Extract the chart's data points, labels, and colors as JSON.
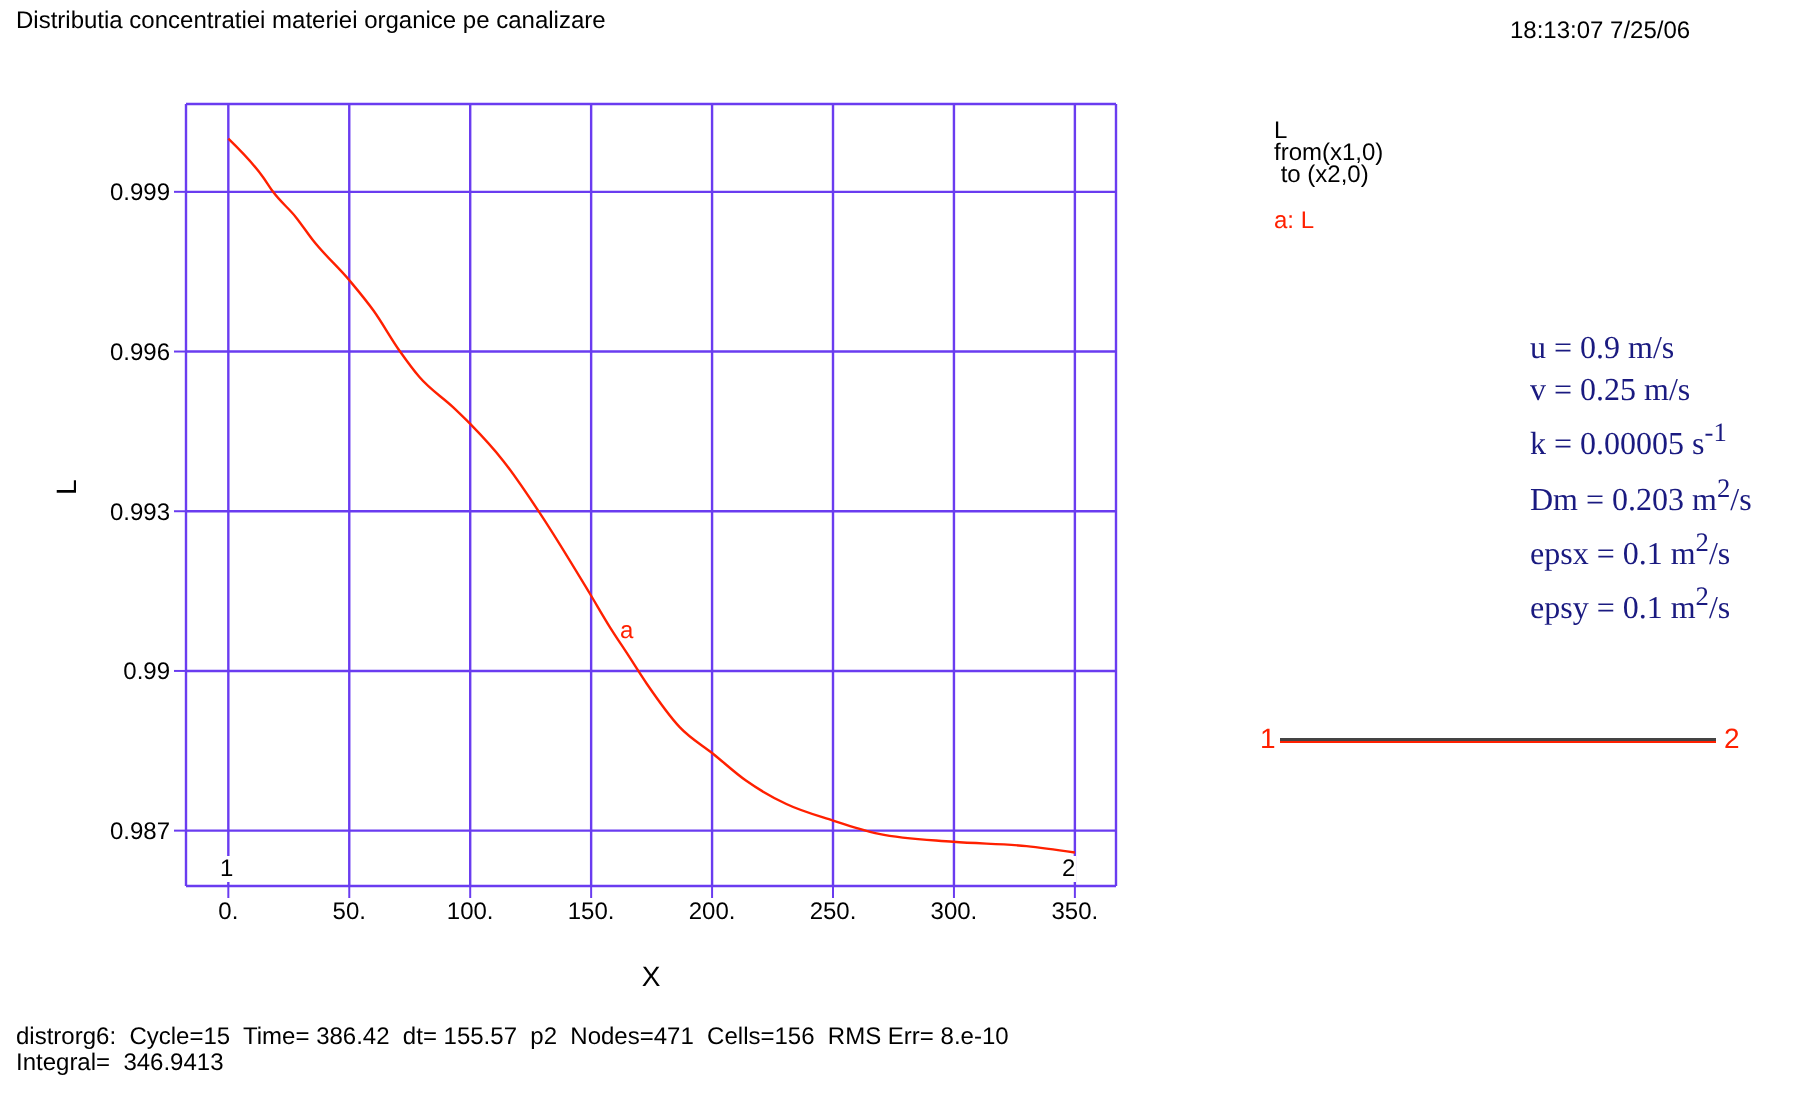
{
  "chart_data": {
    "type": "line",
    "title": "Distributia concentratiei materiei organice pe canalizare",
    "xlabel": "X",
    "ylabel": "L",
    "legend_title": "L\nfrom(x1,0)\n to (x2,0)",
    "legend": "top right",
    "grid": true,
    "marker": "none",
    "line_style": "solid",
    "xlim": [
      -17.5,
      367
    ],
    "ylim": [
      0.98596,
      1.00065
    ],
    "xticks": [
      {
        "value": 0,
        "label": "0."
      },
      {
        "value": 50,
        "label": "50."
      },
      {
        "value": 100,
        "label": "100."
      },
      {
        "value": 150,
        "label": "150."
      },
      {
        "value": 200,
        "label": "200."
      },
      {
        "value": 250,
        "label": "250."
      },
      {
        "value": 300,
        "label": "300."
      },
      {
        "value": 350,
        "label": "350."
      }
    ],
    "yticks": [
      0.987,
      0.99,
      0.993,
      0.996,
      0.999
    ],
    "x": [
      0,
      14.3,
      18.5,
      28,
      35,
      50.2,
      60,
      71,
      79,
      93,
      100,
      113.6,
      129,
      149.5,
      157.8,
      165,
      173,
      186.7,
      200.5,
      214,
      230.7,
      250,
      269,
      299.7,
      330,
      350
    ],
    "series": [
      {
        "name": "a: L",
        "color": "#ff2000",
        "values": [
          1.0,
          0.99928,
          0.999,
          0.99852,
          0.99809,
          0.99733,
          0.99677,
          0.996,
          0.99552,
          0.99495,
          0.99464,
          0.99395,
          0.99295,
          0.99145,
          0.99082,
          0.99032,
          0.98976,
          0.98894,
          0.98844,
          0.98794,
          0.9875,
          0.98719,
          0.98694,
          0.98679,
          0.98671,
          0.98659
        ]
      }
    ],
    "annotations": [
      "a",
      "1",
      "2",
      "18:13:07 7/25/06",
      "u = 0.9 m/s",
      "v = 0.25 m/s",
      "k = 0.00005 s$^{-1}$",
      "Dm = 0.203 m$^{2}$/s",
      "epsx = 0.1 m$^{2}$/s",
      "epsy = 0.1 m$^{2}$/s",
      "1",
      "2",
      "distrorg6:  Cycle=15  Time= 386.42  dt= 155.57  p2  Nodes=471  Cells=156  RMS Err= 8.e-10",
      "Integral=  346.9413"
    ]
  }
}
